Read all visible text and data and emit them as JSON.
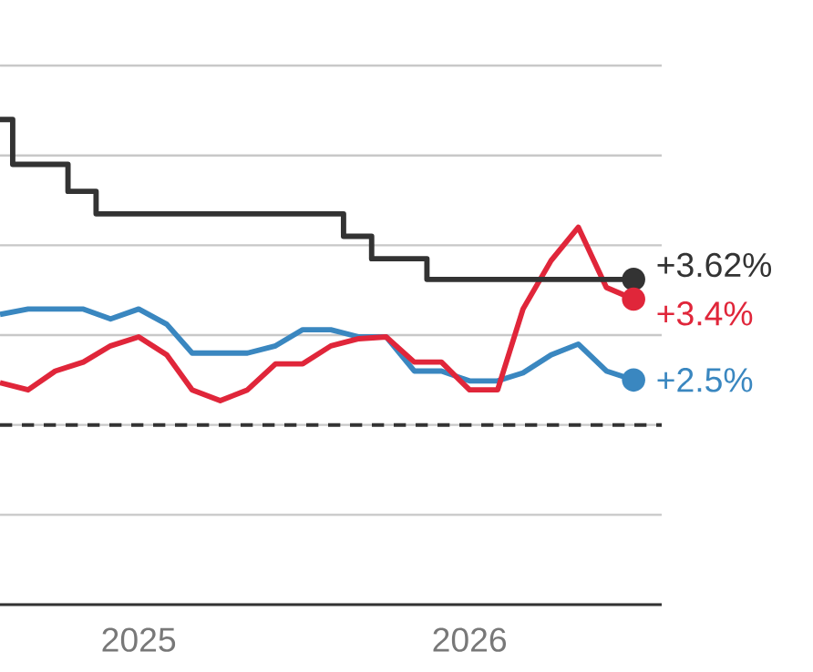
{
  "chart_data": {
    "type": "line",
    "x": [
      "2024-08-01",
      "2024-09-01",
      "2024-10-01",
      "2024-11-01",
      "2024-12-01",
      "2025-01-01",
      "2025-02-01",
      "2025-03-01",
      "2025-04-01",
      "2025-05-01",
      "2025-06-01",
      "2025-07-01",
      "2025-08-01",
      "2025-09-01",
      "2025-10-01",
      "2025-11-01",
      "2025-12-01",
      "2026-01-01",
      "2026-02-01",
      "2026-03-01",
      "2026-04-01",
      "2026-05-01",
      "2026-06-01",
      "2026-07-01"
    ],
    "series": [
      {
        "color": "#3a87c0",
        "values": [
          3.23,
          3.29,
          3.29,
          3.29,
          3.18,
          3.29,
          3.12,
          2.8,
          2.8,
          2.8,
          2.88,
          3.06,
          3.06,
          2.98,
          2.98,
          2.6,
          2.6,
          2.49,
          2.49,
          2.58,
          2.78,
          2.9,
          2.6,
          2.5
        ],
        "value_labels": [
          null,
          null,
          null,
          null,
          null,
          null,
          null,
          null,
          null,
          null,
          null,
          null,
          null,
          null,
          null,
          null,
          null,
          null,
          null,
          null,
          null,
          null,
          null,
          "+2.5%"
        ]
      },
      {
        "color": "#e0263a",
        "values": [
          2.47,
          2.39,
          2.6,
          2.7,
          2.88,
          2.98,
          2.78,
          2.39,
          2.27,
          2.39,
          2.68,
          2.68,
          2.88,
          2.96,
          2.98,
          2.7,
          2.7,
          2.39,
          2.39,
          3.29,
          3.83,
          4.2,
          3.53,
          3.4
        ],
        "value_labels": [
          null,
          null,
          null,
          null,
          null,
          null,
          null,
          null,
          null,
          null,
          null,
          null,
          null,
          null,
          null,
          null,
          null,
          null,
          null,
          null,
          null,
          null,
          null,
          "+3.4%"
        ]
      },
      {
        "type": "step",
        "color": "#333333",
        "x": [
          "2024-08-01",
          "2024-08-15",
          "2024-10-15",
          "2024-11-15",
          "2025-08-15",
          "2025-09-15",
          "2025-11-15",
          "2026-07-01"
        ],
        "values": [
          5.4,
          4.9,
          4.6,
          4.35,
          4.1,
          3.85,
          3.62,
          3.62
        ],
        "value_labels": [
          null,
          null,
          null,
          null,
          null,
          null,
          null,
          "+3.62%"
        ]
      }
    ],
    "xlim": [
      "2024-08-01",
      "2026-08-01"
    ],
    "xticks": [
      "2025",
      "2026"
    ],
    "ylim": [
      0,
      6
    ],
    "yticks": [
      {
        "value": 0,
        "label": null
      },
      {
        "value": 1,
        "label": null
      },
      {
        "value": 2,
        "label": null
      },
      {
        "value": 3,
        "label": null
      },
      {
        "value": 4,
        "label": null
      },
      {
        "value": 5,
        "label": null
      },
      {
        "value": 6,
        "label": null
      }
    ],
    "tick_labels": "x",
    "grid": "y",
    "ref_lines": [
      {
        "axis": "y",
        "value": 2,
        "color": "#333333",
        "line_style": "dashed"
      }
    ]
  }
}
